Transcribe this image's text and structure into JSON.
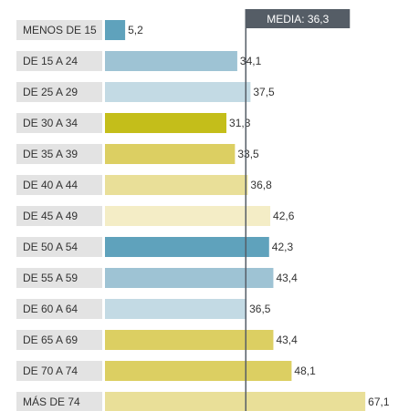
{
  "chart_data": {
    "type": "bar",
    "orientation": "horizontal",
    "categories": [
      "MENOS DE 15",
      "DE 15 A 24",
      "DE 25 A 29",
      "DE 30 A 34",
      "DE 35 A 39",
      "DE 40 A 44",
      "DE 45 A 49",
      "DE 50 A 54",
      "DE 55 A 59",
      "DE 60 A 64",
      "DE 65 A 69",
      "DE 70 A 74",
      "MÁS DE 74"
    ],
    "values": [
      5.2,
      34.1,
      37.5,
      31.3,
      33.5,
      36.8,
      42.6,
      42.3,
      43.4,
      36.5,
      43.4,
      48.1,
      67.1
    ],
    "value_labels": [
      "5,2",
      "34,1",
      "37,5",
      "31,3",
      "33,5",
      "36,8",
      "42,6",
      "42,3",
      "43,4",
      "36,5",
      "43,4",
      "48,1",
      "67,1"
    ],
    "bar_colors": [
      "#5fa2bc",
      "#9ec3d4",
      "#c3dae4",
      "#c4be1a",
      "#dccf62",
      "#e9df98",
      "#f4edc6",
      "#5fa2bc",
      "#9ec3d4",
      "#c3dae4",
      "#dccf62",
      "#dccf62",
      "#e9df98"
    ],
    "category_box_color": "#e3e3e3",
    "mean": {
      "value": 36.3,
      "label": "MEDIA: 36,3",
      "color": "#555d66"
    },
    "xlim": [
      0,
      67.1
    ],
    "title": "",
    "xlabel": "",
    "ylabel": "",
    "grid": false,
    "legend": "none"
  }
}
